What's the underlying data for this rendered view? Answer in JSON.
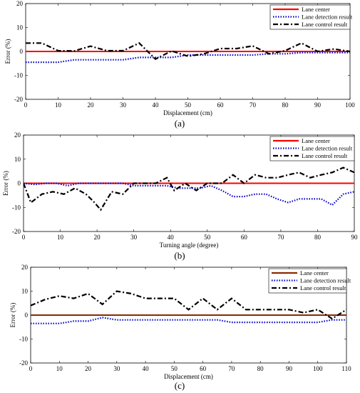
{
  "chart_data": [
    {
      "type": "line",
      "panel_label": "(a)",
      "xlabel": "Displacement (cm)",
      "ylabel": "Error (%)",
      "xlim": [
        0,
        100
      ],
      "ylim": [
        -20,
        20
      ],
      "xticks": [
        0,
        10,
        20,
        30,
        40,
        50,
        60,
        70,
        80,
        90,
        100
      ],
      "yticks": [
        -20,
        -10,
        0,
        10,
        20
      ],
      "grid": false,
      "legend_position": "top-right",
      "series": [
        {
          "name": "Lane center",
          "color": "#ff0000",
          "dash": "solid",
          "x": [
            0,
            100
          ],
          "y": [
            0,
            0
          ]
        },
        {
          "name": "Lane detection result",
          "color": "#0000cc",
          "dash": "dotted",
          "x": [
            0,
            5,
            10,
            15,
            20,
            25,
            30,
            35,
            40,
            45,
            50,
            55,
            60,
            65,
            70,
            75,
            80,
            85,
            90,
            95,
            100
          ],
          "y": [
            -4.5,
            -4.5,
            -4.5,
            -3.5,
            -3.5,
            -3.5,
            -3.5,
            -2.5,
            -2.5,
            -2.5,
            -1.5,
            -1.5,
            -1.5,
            -1.5,
            -1.5,
            -1.0,
            -1.0,
            -0.5,
            -0.5,
            -0.5,
            -0.5
          ]
        },
        {
          "name": "Lane control result",
          "color": "#000000",
          "dash": "dashdot",
          "x": [
            0,
            5,
            10,
            15,
            20,
            25,
            30,
            35,
            40,
            45,
            50,
            55,
            60,
            65,
            70,
            75,
            80,
            85,
            90,
            95,
            100
          ],
          "y": [
            3.5,
            3.5,
            0.3,
            0.2,
            2.2,
            0.3,
            0.3,
            3.5,
            -3.2,
            0.2,
            -2.0,
            -1.0,
            1.2,
            1.2,
            2.3,
            -1.0,
            0.3,
            3.5,
            0.0,
            1.0,
            0.0
          ]
        }
      ]
    },
    {
      "type": "line",
      "panel_label": "(b)",
      "xlabel": "Turning angle (degree)",
      "ylabel": "Error (%)",
      "xlim": [
        0,
        90
      ],
      "ylim": [
        -20,
        20
      ],
      "xticks": [
        0,
        10,
        20,
        30,
        40,
        50,
        60,
        70,
        80,
        90
      ],
      "yticks": [
        -20,
        -10,
        0,
        10,
        20
      ],
      "grid": false,
      "legend_position": "top-right",
      "series": [
        {
          "name": "Lane center",
          "color": "#ff0000",
          "dash": "solid",
          "x": [
            0,
            90
          ],
          "y": [
            0,
            0
          ]
        },
        {
          "name": "Lane detection result",
          "color": "#0000cc",
          "dash": "dotted",
          "x": [
            0,
            3,
            6,
            9,
            12,
            15,
            18,
            21,
            24,
            27,
            30,
            33,
            36,
            39,
            42,
            45,
            48,
            51,
            54,
            57,
            60,
            63,
            66,
            69,
            72,
            75,
            78,
            81,
            84,
            87,
            90
          ],
          "y": [
            0,
            -0.5,
            0,
            0,
            -1.0,
            0,
            0,
            0,
            0,
            0,
            -1.0,
            -1.0,
            -1.0,
            -1.0,
            -2.0,
            -2.0,
            -2.0,
            -1.0,
            -3.0,
            -5.5,
            -5.5,
            -4.5,
            -4.5,
            -6.5,
            -8.0,
            -6.5,
            -6.5,
            -6.5,
            -9.0,
            -4.5,
            -3.5
          ]
        },
        {
          "name": "Lane control result",
          "color": "#000000",
          "dash": "dashdot",
          "x": [
            0,
            2,
            5,
            8,
            11,
            14,
            17,
            19,
            21,
            24,
            27,
            30,
            33,
            36,
            39,
            41,
            44,
            47,
            50,
            54,
            57,
            60,
            63,
            66,
            69,
            72,
            75,
            78,
            81,
            84,
            87,
            90
          ],
          "y": [
            0,
            -8.0,
            -4.5,
            -3.5,
            -4.5,
            -2.0,
            -4.5,
            -7.5,
            -11.0,
            -3.5,
            -4.5,
            0,
            0,
            0,
            2.3,
            -3.0,
            0,
            -3.0,
            0,
            0,
            3.5,
            0,
            3.5,
            2.3,
            2.3,
            3.5,
            4.5,
            2.3,
            3.5,
            4.5,
            6.5,
            4.5
          ]
        }
      ]
    },
    {
      "type": "line",
      "panel_label": "(c)",
      "xlabel": "Displacement (cm)",
      "ylabel": "Error (%)",
      "xlim": [
        0,
        110
      ],
      "ylim": [
        -20,
        20
      ],
      "xticks": [
        0,
        10,
        20,
        30,
        40,
        50,
        60,
        70,
        80,
        90,
        100,
        110
      ],
      "yticks": [
        -20,
        -10,
        0,
        10,
        20
      ],
      "grid": false,
      "legend_position": "top-right",
      "series": [
        {
          "name": "Lane center",
          "color": "#8b2a00",
          "dash": "solid",
          "x": [
            0,
            110
          ],
          "y": [
            0,
            0
          ]
        },
        {
          "name": "Lane detection result",
          "color": "#0000cc",
          "dash": "dotted",
          "x": [
            0,
            5,
            10,
            15,
            20,
            25,
            30,
            35,
            40,
            45,
            50,
            55,
            60,
            65,
            70,
            75,
            80,
            85,
            90,
            95,
            100,
            105,
            110
          ],
          "y": [
            -3.5,
            -3.5,
            -3.5,
            -2.5,
            -2.5,
            -1.0,
            -2.0,
            -2.0,
            -2.0,
            -2.0,
            -2.0,
            -2.0,
            -2.0,
            -2.0,
            -3.0,
            -3.0,
            -3.0,
            -3.0,
            -3.0,
            -3.0,
            -3.0,
            -2.0,
            -2.0
          ]
        },
        {
          "name": "Lane control result",
          "color": "#000000",
          "dash": "dashdot",
          "x": [
            0,
            5,
            10,
            15,
            20,
            25,
            30,
            35,
            40,
            45,
            50,
            55,
            60,
            65,
            70,
            75,
            80,
            85,
            90,
            95,
            100,
            105,
            110
          ],
          "y": [
            4.0,
            6.5,
            8.0,
            7.0,
            9.0,
            4.5,
            10.0,
            9.0,
            7.0,
            7.0,
            7.0,
            2.3,
            7.0,
            2.3,
            7.0,
            2.3,
            2.3,
            2.3,
            2.3,
            1.0,
            2.3,
            -1.5,
            2.3
          ]
        }
      ]
    }
  ]
}
